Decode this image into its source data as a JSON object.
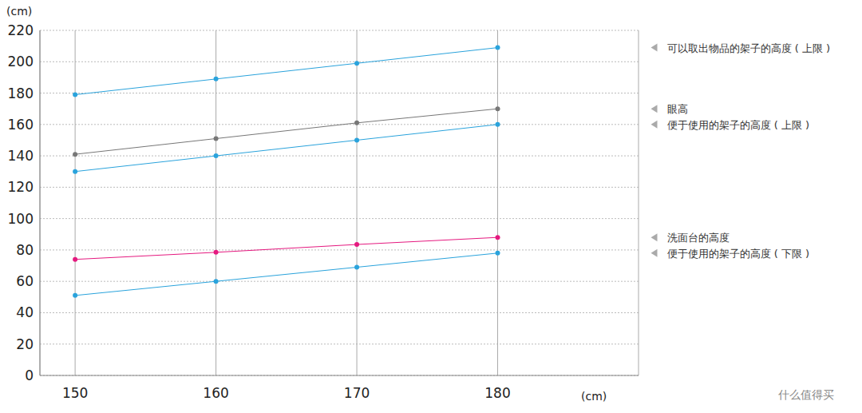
{
  "chart_data": {
    "type": "line",
    "x_label": "(cm)",
    "y_label": "(cm)",
    "x": [
      150,
      160,
      170,
      180
    ],
    "xlim": [
      147.5,
      190
    ],
    "xticks": [
      150,
      160,
      170,
      180
    ],
    "ylim": [
      0,
      220
    ],
    "yticks": [
      0,
      20,
      40,
      60,
      80,
      100,
      120,
      140,
      160,
      180,
      200,
      220
    ],
    "grid": true,
    "marker": "circle",
    "series": [
      {
        "name": "可以取出物品的架子的高度 ( 上限 )",
        "color": "#2aa3dc",
        "values": [
          179,
          189,
          199,
          209
        ]
      },
      {
        "name": "眼高",
        "color": "#777777",
        "values": [
          141,
          151,
          161,
          170
        ]
      },
      {
        "name": "便于使用的架子的高度 ( 上限 )",
        "color": "#2aa3dc",
        "values": [
          130,
          140,
          150,
          160
        ]
      },
      {
        "name": "洗面台的高度",
        "color": "#e5197f",
        "values": [
          74,
          78.5,
          83.5,
          88
        ]
      },
      {
        "name": "便于使用的架子的高度 ( 下限 )",
        "color": "#2aa3dc",
        "values": [
          51,
          60,
          69,
          78
        ]
      }
    ],
    "annotations": [
      "什么值得买"
    ]
  }
}
